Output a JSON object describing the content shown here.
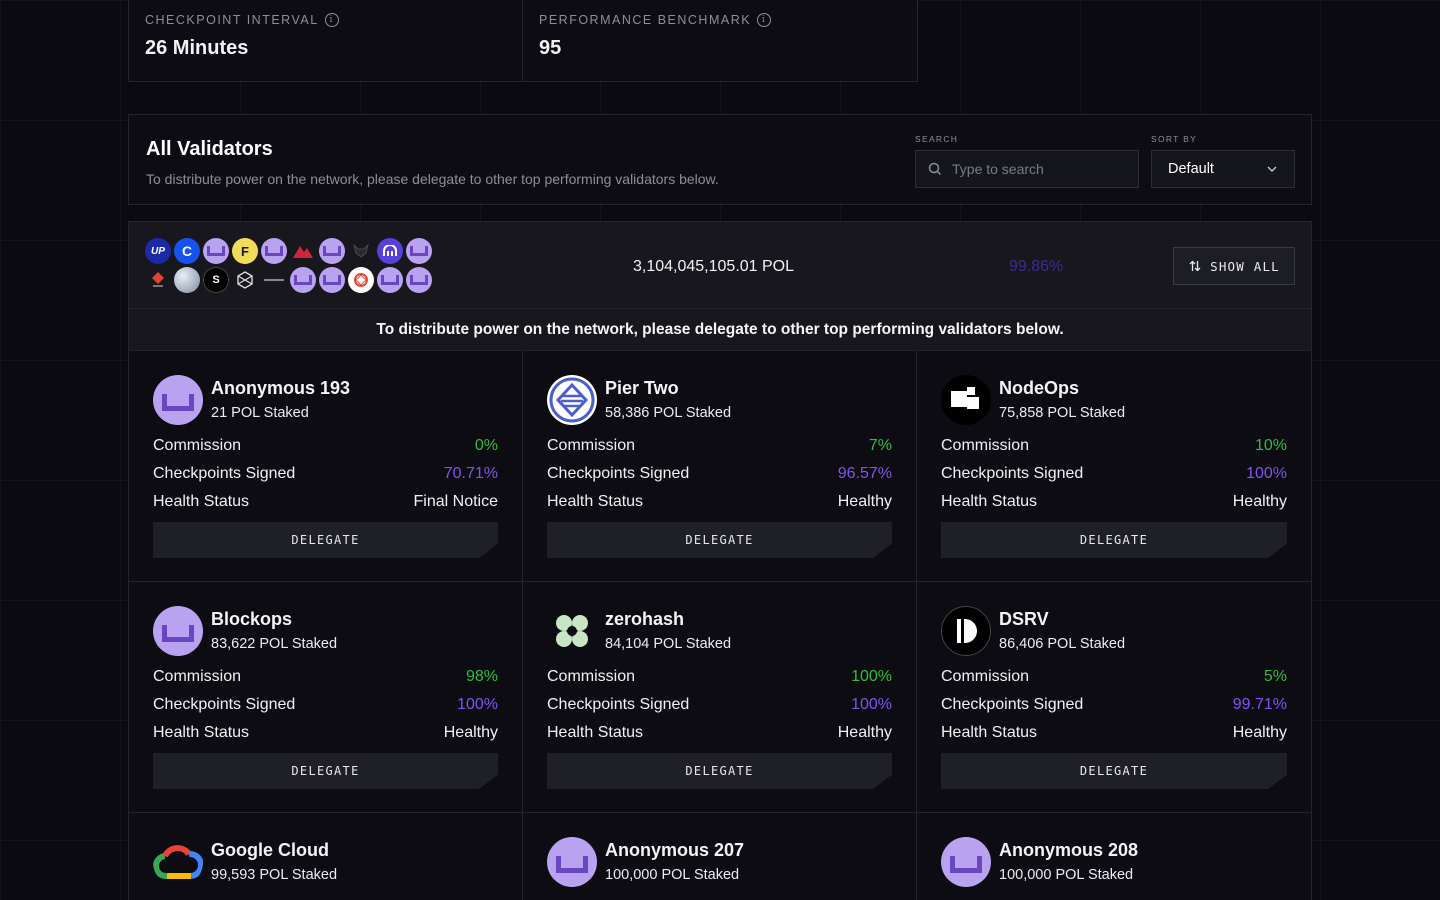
{
  "stats": [
    {
      "label": "CHECKPOINT INTERVAL",
      "value": "26 Minutes"
    },
    {
      "label": "PERFORMANCE BENCHMARK",
      "value": "95"
    }
  ],
  "header": {
    "title": "All Validators",
    "subtitle": "To distribute power on the network, please delegate to other top performing validators below.",
    "search_label": "SEARCH",
    "search_placeholder": "Type to search",
    "sort_label": "SORT BY",
    "sort_value": "Default"
  },
  "summary": {
    "total_staked": "3,104,045,105.01 POL",
    "percent": "99.86%",
    "show_all_label": "SHOW ALL",
    "logo_row1": [
      "up-logo",
      "coinbase-logo",
      "anon-logo",
      "f-logo",
      "anon-logo",
      "red-mountain-logo",
      "anon-logo",
      "fox-logo",
      "kraken-logo",
      "anon-logo"
    ],
    "logo_row2": [
      "stakin-logo",
      "globe-logo",
      "s-logo",
      "hex-logo",
      "dash-logo",
      "anon-logo",
      "anon-logo",
      "ring-logo",
      "anon-logo",
      "anon-logo"
    ],
    "logo_text": {
      "up": "UP",
      "coinbase": "C",
      "f": "F",
      "s": "S"
    }
  },
  "notice": "To distribute power on the network, please delegate to other top performing validators below.",
  "labels": {
    "commission": "Commission",
    "checkpoints": "Checkpoints Signed",
    "health": "Health Status",
    "delegate": "DELEGATE"
  },
  "validators": [
    {
      "name": "Anonymous 193",
      "staked": "21 POL Staked",
      "commission": "0%",
      "checkpoints": "70.71%",
      "health": "Final Notice",
      "icon": "anon-avatar-icon"
    },
    {
      "name": "Pier Two",
      "staked": "58,386 POL Staked",
      "commission": "7%",
      "checkpoints": "96.57%",
      "health": "Healthy",
      "icon": "pier-two-logo-icon"
    },
    {
      "name": "NodeOps",
      "staked": "75,858 POL Staked",
      "commission": "10%",
      "checkpoints": "100%",
      "health": "Healthy",
      "icon": "nodeops-logo-icon"
    },
    {
      "name": "Blockops",
      "staked": "83,622 POL Staked",
      "commission": "98%",
      "checkpoints": "100%",
      "health": "Healthy",
      "icon": "anon-avatar-icon"
    },
    {
      "name": "zerohash",
      "staked": "84,104 POL Staked",
      "commission": "100%",
      "checkpoints": "100%",
      "health": "Healthy",
      "icon": "zerohash-logo-icon"
    },
    {
      "name": "DSRV",
      "staked": "86,406 POL Staked",
      "commission": "5%",
      "checkpoints": "99.71%",
      "health": "Healthy",
      "icon": "dsrv-logo-icon"
    },
    {
      "name": "Google Cloud",
      "staked": "99,593 POL Staked",
      "icon": "google-cloud-logo-icon"
    },
    {
      "name": "Anonymous 207",
      "staked": "100,000 POL Staked",
      "icon": "anon-avatar-icon"
    },
    {
      "name": "Anonymous 208",
      "staked": "100,000 POL Staked",
      "icon": "anon-avatar-icon"
    }
  ],
  "colors": {
    "background": "#0a0a10",
    "commission_green": "#2fbf3a",
    "checkpoints_purple": "#7f54f0",
    "avatar_lavender": "#b9a3f0"
  }
}
